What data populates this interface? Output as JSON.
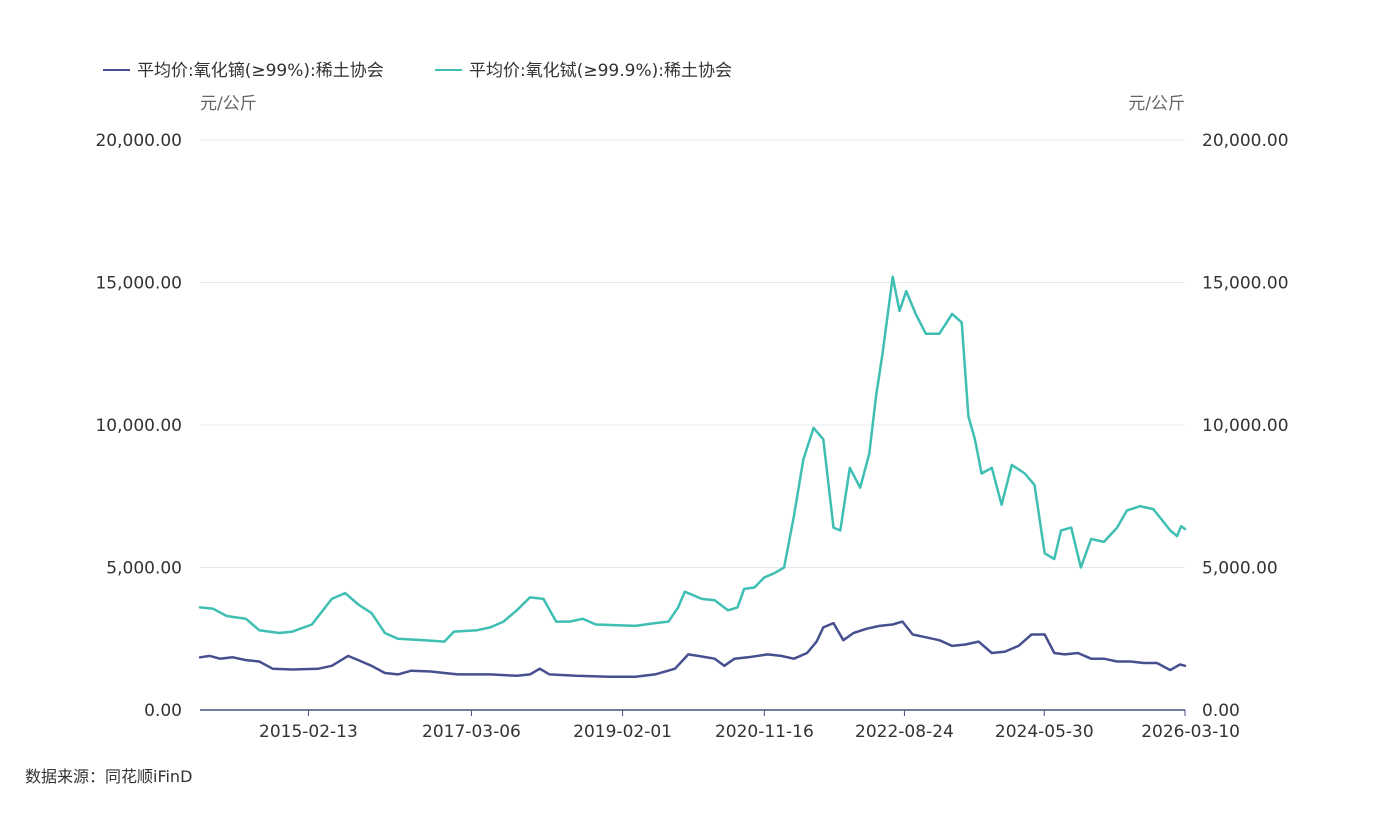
{
  "source": "数据来源：同花顺iFinD",
  "chart_data": {
    "type": "line",
    "legend_position": "top-left",
    "grid": true,
    "y_left_unit": "元/公斤",
    "y_right_unit": "元/公斤",
    "ylim": [
      0,
      20000
    ],
    "yticks": [
      "0.00",
      "5,000.00",
      "10,000.00",
      "15,000.00",
      "20,000.00"
    ],
    "xlim": [
      "2013-10-01",
      "2026-03-10"
    ],
    "xticks": [
      "2015-02-13",
      "2017-03-06",
      "2019-02-01",
      "2020-11-16",
      "2022-08-24",
      "2024-05-30",
      "2026-03-10"
    ],
    "series": [
      {
        "name": "平均价:氧化镝(≥99%):稀土协会",
        "color": "#46508f",
        "points": [
          [
            "2013-10-01",
            1850
          ],
          [
            "2013-11-15",
            1900
          ],
          [
            "2014-01-01",
            1800
          ],
          [
            "2014-03-01",
            1850
          ],
          [
            "2014-05-01",
            1750
          ],
          [
            "2014-07-01",
            1700
          ],
          [
            "2014-09-01",
            1450
          ],
          [
            "2014-12-01",
            1420
          ],
          [
            "2015-04-01",
            1450
          ],
          [
            "2015-06-01",
            1550
          ],
          [
            "2015-08-15",
            1900
          ],
          [
            "2015-10-01",
            1750
          ],
          [
            "2015-12-01",
            1550
          ],
          [
            "2016-02-01",
            1300
          ],
          [
            "2016-04-01",
            1250
          ],
          [
            "2016-06-01",
            1380
          ],
          [
            "2016-09-01",
            1350
          ],
          [
            "2016-11-01",
            1300
          ],
          [
            "2017-01-01",
            1250
          ],
          [
            "2017-06-01",
            1250
          ],
          [
            "2017-10-01",
            1200
          ],
          [
            "2017-12-01",
            1250
          ],
          [
            "2018-01-15",
            1450
          ],
          [
            "2018-03-01",
            1250
          ],
          [
            "2018-07-01",
            1200
          ],
          [
            "2018-12-01",
            1170
          ],
          [
            "2019-04-01",
            1170
          ],
          [
            "2019-07-01",
            1250
          ],
          [
            "2019-10-01",
            1450
          ],
          [
            "2019-12-01",
            1950
          ],
          [
            "2020-01-15",
            1900
          ],
          [
            "2020-04-01",
            1800
          ],
          [
            "2020-05-15",
            1550
          ],
          [
            "2020-07-01",
            1800
          ],
          [
            "2020-09-01",
            1850
          ],
          [
            "2020-12-01",
            1950
          ],
          [
            "2021-02-01",
            1900
          ],
          [
            "2021-04-01",
            1800
          ],
          [
            "2021-06-01",
            2000
          ],
          [
            "2021-07-15",
            2400
          ],
          [
            "2021-08-15",
            2900
          ],
          [
            "2021-10-01",
            3050
          ],
          [
            "2021-11-15",
            2450
          ],
          [
            "2022-01-01",
            2700
          ],
          [
            "2022-03-01",
            2850
          ],
          [
            "2022-05-01",
            2950
          ],
          [
            "2022-07-01",
            3000
          ],
          [
            "2022-08-15",
            3100
          ],
          [
            "2022-10-01",
            2650
          ],
          [
            "2022-12-01",
            2550
          ],
          [
            "2023-02-01",
            2450
          ],
          [
            "2023-04-01",
            2250
          ],
          [
            "2023-06-01",
            2300
          ],
          [
            "2023-08-01",
            2400
          ],
          [
            "2023-10-01",
            2000
          ],
          [
            "2023-12-01",
            2050
          ],
          [
            "2024-02-01",
            2250
          ],
          [
            "2024-04-01",
            2650
          ],
          [
            "2024-06-01",
            2650
          ],
          [
            "2024-07-15",
            2000
          ],
          [
            "2024-09-01",
            1950
          ],
          [
            "2024-11-01",
            2000
          ],
          [
            "2025-01-01",
            1800
          ],
          [
            "2025-03-01",
            1800
          ],
          [
            "2025-05-01",
            1700
          ],
          [
            "2025-07-01",
            1700
          ],
          [
            "2025-09-01",
            1650
          ],
          [
            "2025-11-01",
            1650
          ],
          [
            "2026-01-01",
            1400
          ],
          [
            "2026-02-15",
            1600
          ],
          [
            "2026-03-10",
            1550
          ]
        ]
      },
      {
        "name": "平均价:氧化铽(≥99.9%):稀土协会",
        "color": "#3fbfb3",
        "points": [
          [
            "2013-10-01",
            3600
          ],
          [
            "2013-12-01",
            3550
          ],
          [
            "2014-02-01",
            3300
          ],
          [
            "2014-05-01",
            3200
          ],
          [
            "2014-07-01",
            2800
          ],
          [
            "2014-10-01",
            2700
          ],
          [
            "2014-12-01",
            2750
          ],
          [
            "2015-03-01",
            3000
          ],
          [
            "2015-06-01",
            3900
          ],
          [
            "2015-08-01",
            4100
          ],
          [
            "2015-10-01",
            3700
          ],
          [
            "2015-12-01",
            3400
          ],
          [
            "2016-02-01",
            2700
          ],
          [
            "2016-04-01",
            2500
          ],
          [
            "2016-08-01",
            2450
          ],
          [
            "2016-11-01",
            2400
          ],
          [
            "2016-12-15",
            2750
          ],
          [
            "2017-04-01",
            2800
          ],
          [
            "2017-06-01",
            2900
          ],
          [
            "2017-08-01",
            3100
          ],
          [
            "2017-10-01",
            3500
          ],
          [
            "2017-12-01",
            3950
          ],
          [
            "2018-02-01",
            3900
          ],
          [
            "2018-04-01",
            3100
          ],
          [
            "2018-06-01",
            3100
          ],
          [
            "2018-08-01",
            3200
          ],
          [
            "2018-10-01",
            3000
          ],
          [
            "2019-04-01",
            2950
          ],
          [
            "2019-07-01",
            3050
          ],
          [
            "2019-09-01",
            3100
          ],
          [
            "2019-10-15",
            3600
          ],
          [
            "2019-11-15",
            4150
          ],
          [
            "2020-02-01",
            3900
          ],
          [
            "2020-04-01",
            3850
          ],
          [
            "2020-06-01",
            3500
          ],
          [
            "2020-07-15",
            3600
          ],
          [
            "2020-08-15",
            4250
          ],
          [
            "2020-10-01",
            4300
          ],
          [
            "2020-11-15",
            4650
          ],
          [
            "2021-01-01",
            4800
          ],
          [
            "2021-02-15",
            5000
          ],
          [
            "2021-04-01",
            6800
          ],
          [
            "2021-05-15",
            8800
          ],
          [
            "2021-07-01",
            9900
          ],
          [
            "2021-08-15",
            9500
          ],
          [
            "2021-10-01",
            6400
          ],
          [
            "2021-11-01",
            6300
          ],
          [
            "2021-12-15",
            8500
          ],
          [
            "2022-02-01",
            7800
          ],
          [
            "2022-03-15",
            9000
          ],
          [
            "2022-04-15",
            11000
          ],
          [
            "2022-05-15",
            12500
          ],
          [
            "2022-07-01",
            15200
          ],
          [
            "2022-08-01",
            14000
          ],
          [
            "2022-09-01",
            14700
          ],
          [
            "2022-10-15",
            13900
          ],
          [
            "2022-12-01",
            13200
          ],
          [
            "2023-02-01",
            13200
          ],
          [
            "2023-04-01",
            13900
          ],
          [
            "2023-05-15",
            13600
          ],
          [
            "2023-06-15",
            10300
          ],
          [
            "2023-07-15",
            9500
          ],
          [
            "2023-08-15",
            8300
          ],
          [
            "2023-10-01",
            8500
          ],
          [
            "2023-11-15",
            7200
          ],
          [
            "2024-01-01",
            8600
          ],
          [
            "2024-03-01",
            8300
          ],
          [
            "2024-04-15",
            7900
          ],
          [
            "2024-06-01",
            5500
          ],
          [
            "2024-07-15",
            5300
          ],
          [
            "2024-08-15",
            6300
          ],
          [
            "2024-10-01",
            6400
          ],
          [
            "2024-11-15",
            5000
          ],
          [
            "2025-01-01",
            6000
          ],
          [
            "2025-03-01",
            5900
          ],
          [
            "2025-05-01",
            6400
          ],
          [
            "2025-06-15",
            7000
          ],
          [
            "2025-08-15",
            7150
          ],
          [
            "2025-10-15",
            7050
          ],
          [
            "2025-11-15",
            6750
          ],
          [
            "2026-01-01",
            6300
          ],
          [
            "2026-02-01",
            6100
          ],
          [
            "2026-02-20",
            6450
          ],
          [
            "2026-03-10",
            6350
          ]
        ]
      }
    ]
  }
}
